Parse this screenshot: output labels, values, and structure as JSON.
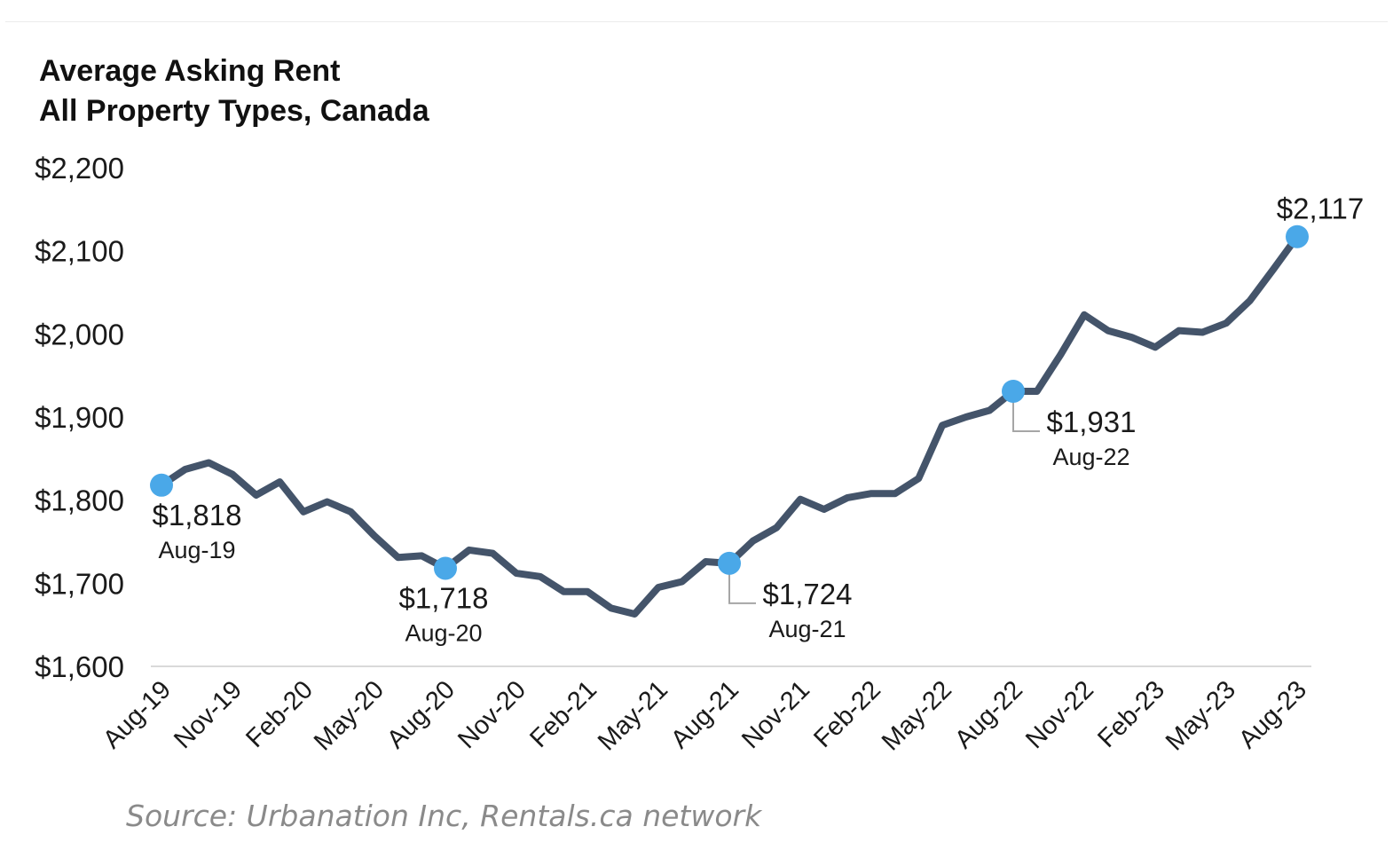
{
  "colors": {
    "line": "#44546a",
    "marker": "#4aa8e8",
    "axis": "#d9d9d9",
    "leader": "#a6a6a6"
  },
  "source_text": "Source: Urbanation Inc, Rentals.ca network",
  "chart_data": {
    "type": "line",
    "title": [
      "Average Asking Rent",
      "All Property Types, Canada"
    ],
    "xlabel": "",
    "ylabel": "",
    "ylim": [
      1600,
      2200
    ],
    "yticks": [
      1600,
      1700,
      1800,
      1900,
      2000,
      2100,
      2200
    ],
    "ytick_labels": [
      "$1,600",
      "$1,700",
      "$1,800",
      "$1,900",
      "$2,000",
      "$2,100",
      "$2,200"
    ],
    "grid": false,
    "xtick_labels": [
      "Aug-19",
      "Nov-19",
      "Feb-20",
      "May-20",
      "Aug-20",
      "Nov-20",
      "Feb-21",
      "May-21",
      "Aug-21",
      "Nov-21",
      "Feb-22",
      "May-22",
      "Aug-22",
      "Nov-22",
      "Feb-23",
      "May-23",
      "Aug-23"
    ],
    "xtick_every": 3,
    "series": [
      {
        "name": "Average Asking Rent",
        "values": [
          1818,
          1837,
          1845,
          1831,
          1806,
          1822,
          1786,
          1798,
          1786,
          1757,
          1731,
          1733,
          1718,
          1740,
          1736,
          1712,
          1708,
          1690,
          1690,
          1670,
          1663,
          1695,
          1702,
          1726,
          1724,
          1751,
          1767,
          1801,
          1789,
          1803,
          1808,
          1808,
          1826,
          1890,
          1900,
          1908,
          1931,
          1931,
          1975,
          2023,
          2004,
          1996,
          1984,
          2004,
          2002,
          2013,
          2040,
          2078,
          2117
        ]
      }
    ],
    "annotations": [
      {
        "index": 0,
        "value": "$1,818",
        "date": "Aug-19",
        "leader": false
      },
      {
        "index": 12,
        "value": "$1,718",
        "date": "Aug-20",
        "leader": false
      },
      {
        "index": 24,
        "value": "$1,724",
        "date": "Aug-21",
        "leader": true
      },
      {
        "index": 36,
        "value": "$1,931",
        "date": "Aug-22",
        "leader": true
      },
      {
        "index": 48,
        "value": "$2,117",
        "date": "",
        "leader": false
      }
    ]
  }
}
